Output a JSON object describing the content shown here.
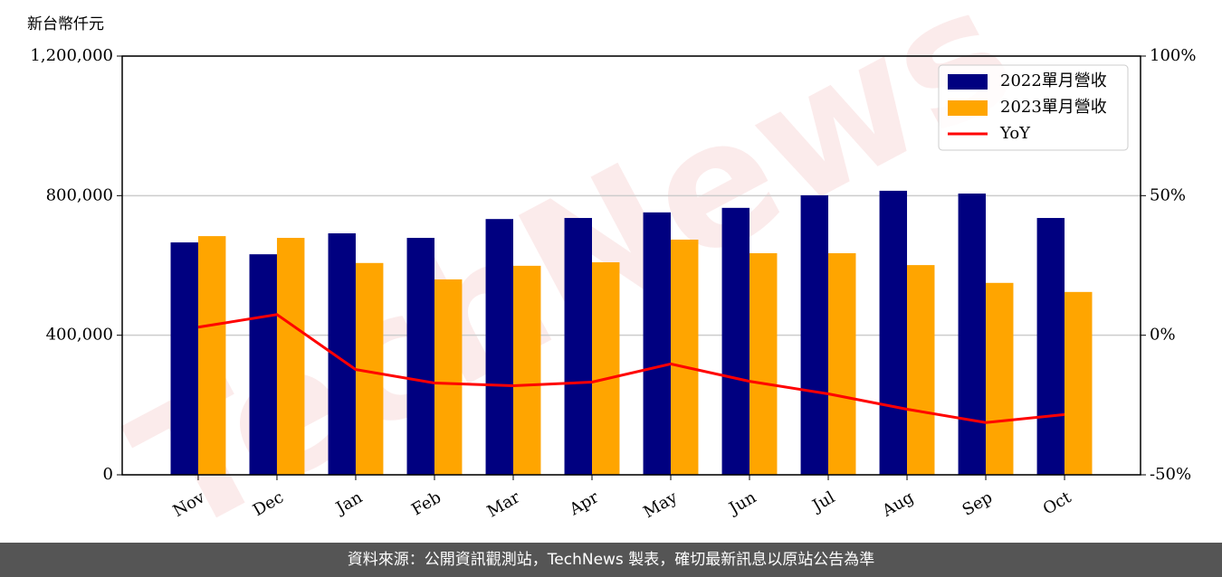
{
  "chart_data": {
    "type": "bar",
    "y_label": "新台幣仟元",
    "watermark": "TechNews",
    "categories": [
      "Nov",
      "Dec",
      "Jan",
      "Feb",
      "Mar",
      "Apr",
      "May",
      "Jun",
      "Jul",
      "Aug",
      "Sep",
      "Oct"
    ],
    "series": [
      {
        "name": "2022單月營收",
        "color": "#000080",
        "type": "bar",
        "values": [
          666000,
          632000,
          692000,
          679000,
          733000,
          736000,
          752000,
          765000,
          801000,
          814000,
          806000,
          736000
        ]
      },
      {
        "name": "2023單月營收",
        "color": "#ffa500",
        "type": "bar",
        "values": [
          684000,
          679000,
          607000,
          560000,
          599000,
          609000,
          674000,
          635000,
          635000,
          601000,
          550000,
          524000
        ]
      },
      {
        "name": "YoY",
        "color": "#ff0000",
        "type": "line",
        "axis": "y2",
        "values": [
          2.9,
          7.4,
          -12.3,
          -17.1,
          -18.1,
          -16.8,
          -10.3,
          -16.5,
          -21,
          -26.5,
          -31.3,
          -28.4
        ]
      }
    ],
    "ylim": [
      0,
      1200000
    ],
    "yticks": [
      0,
      {
        "value": 400000,
        "label": "400,000"
      },
      {
        "value": 800000,
        "label": "800,000"
      },
      {
        "value": 1200000,
        "label": "1,200,000"
      }
    ],
    "y2lim": [
      -50,
      100
    ],
    "y2ticks": [
      {
        "value": -50,
        "label": "-50%"
      },
      {
        "value": 0,
        "label": "0%"
      },
      {
        "value": 50,
        "label": "50%"
      },
      {
        "value": 100,
        "label": "100%"
      }
    ],
    "grid": true,
    "legend": "upper right"
  },
  "footer": "資料來源：公開資訊觀測站，TechNews 製表，確切最新訊息以原站公告為準"
}
